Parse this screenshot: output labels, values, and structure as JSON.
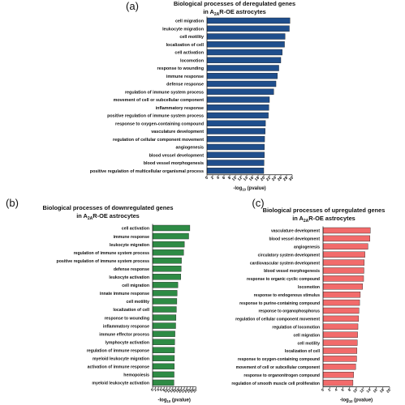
{
  "chart_data": [
    {
      "panel": "(a)",
      "type": "bar",
      "orientation": "horizontal",
      "title_lines": [
        "Biological processes of deregulated genes",
        "in A₂AR-OE astrocytes"
      ],
      "xlabel": "-log₁₀ (pvalue)",
      "ylabel": "",
      "xlim": [
        0,
        30
      ],
      "xticks": [
        0,
        2,
        4,
        6,
        8,
        10,
        12,
        14,
        16,
        18,
        20,
        22,
        24,
        26,
        28,
        30
      ],
      "bar_color": "#1f4e8c",
      "categories": [
        "cell migration",
        "leukocyte migration",
        "cell motility",
        "localization of cell",
        "cell activation",
        "locomotion",
        "response to wounding",
        "immune response",
        "defense response",
        "regulation of immune system process",
        "movement of cell or subcellular component",
        "inflammatory response",
        "positive regulation of immune system process",
        "response to oxygen-containing compound",
        "vasculature development",
        "regulation of cellular component movement",
        "angiogenesis",
        "blood vessel development",
        "blood vessel morphogenesis",
        "positive regulation of multicellular organismal process"
      ],
      "values": [
        29.2,
        29.0,
        27.5,
        27.3,
        26.5,
        26.0,
        25.3,
        24.8,
        24.3,
        23.5,
        22.0,
        21.8,
        21.6,
        20.6,
        20.5,
        20.3,
        20.2,
        20.2,
        20.1,
        20.0
      ]
    },
    {
      "panel": "(b)",
      "type": "bar",
      "orientation": "horizontal",
      "title_lines": [
        "Biological processes of downregulated genes",
        "in A₂AR-OE astrocytes"
      ],
      "xlabel": "-log₁₀ (pvalue)",
      "ylabel": "",
      "xlim": [
        0,
        30
      ],
      "xticks": [
        0,
        2,
        4,
        6,
        8,
        10,
        12,
        14,
        16,
        18,
        20,
        22,
        24,
        26,
        28,
        30
      ],
      "bar_color": "#2e8b45",
      "categories": [
        "cell activation",
        "immune response",
        "leukocyte migration",
        "regulation of immune system process",
        "positive regulation of immune system process",
        "defense response",
        "leukocyte activation",
        "cell migration",
        "innate immune response",
        "cell motility",
        "localization of cell",
        "response to wounding",
        "inflammatory response",
        "immune effector process",
        "lymphocyte activation",
        "regulation of immune response",
        "myeloid leukocyte migration",
        "activation of immune response",
        "hemopoiesis",
        "myeloid leukocyte activation"
      ],
      "values": [
        25.8,
        25.0,
        22.0,
        21.5,
        20.0,
        19.8,
        19.5,
        17.5,
        17.0,
        16.8,
        16.5,
        16.2,
        16.0,
        15.5,
        15.3,
        15.2,
        15.1,
        15.0,
        14.9,
        14.8
      ]
    },
    {
      "panel": "(c)",
      "type": "bar",
      "orientation": "horizontal",
      "title_lines": [
        "Biological processes of upregulated genes",
        "in A₂AR-OE astrocytes"
      ],
      "xlabel": "-log₁₀ (pvalue)",
      "ylabel": "",
      "xlim": [
        0,
        20
      ],
      "xticks": [
        0,
        2,
        4,
        6,
        8,
        10,
        12,
        14,
        16,
        18,
        20
      ],
      "bar_color": "#f26b6b",
      "categories": [
        "vasculature development",
        "blood vessel development",
        "angiogenesis",
        "circulatory system development",
        "cardiovascular system development",
        "blood vessel morphogenesis",
        "response to organic cyclic compound",
        "locomotion",
        "response to endogenous stimulus",
        "response to purine-containing compound",
        "response to organophosphorus",
        "regulation of cellular component movement",
        "regulation of locomotion",
        "cell migration",
        "cell motility",
        "localization of cell",
        "response to oxygen-containing compound",
        "movement of cell or subcellular component",
        "response to organonitrogen compound",
        "regulation of smooth muscle cell proliferation"
      ],
      "values": [
        14.2,
        14.1,
        13.5,
        12.6,
        12.4,
        12.3,
        12.2,
        11.9,
        11.2,
        11.0,
        10.8,
        10.7,
        10.5,
        10.4,
        10.3,
        10.2,
        10.1,
        9.8,
        9.2,
        9.0
      ]
    }
  ]
}
